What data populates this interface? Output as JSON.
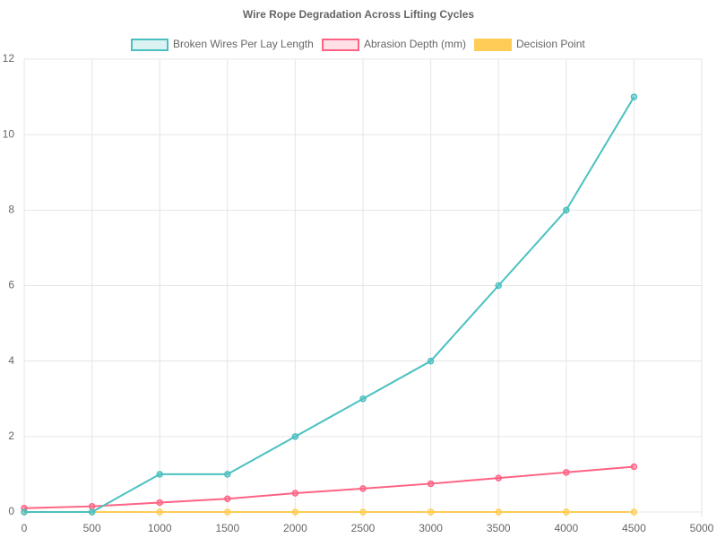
{
  "chart_data": {
    "type": "line",
    "title": "Wire Rope Degradation Across Lifting Cycles",
    "x": [
      0,
      500,
      1000,
      1500,
      2000,
      2500,
      3000,
      3500,
      4000,
      4500
    ],
    "series": [
      {
        "name": "Broken Wires Per Lay Length",
        "color": "#4bc0c0",
        "values": [
          0,
          0,
          1,
          1,
          2,
          3,
          4,
          6,
          8,
          11
        ]
      },
      {
        "name": "Abrasion Depth (mm)",
        "color": "#ff6384",
        "values": [
          0.1,
          0.15,
          0.25,
          0.35,
          0.5,
          0.62,
          0.75,
          0.9,
          1.05,
          1.2
        ]
      },
      {
        "name": "Decision Point",
        "color": "#ffcd56",
        "values": [
          0,
          0,
          0,
          0,
          0,
          0,
          0,
          0,
          0,
          0
        ]
      }
    ],
    "xlim": [
      0,
      5000
    ],
    "xticks": [
      0,
      500,
      1000,
      1500,
      2000,
      2500,
      3000,
      3500,
      4000,
      4500,
      5000
    ],
    "ylim": [
      0,
      12
    ],
    "yticks": [
      0,
      2,
      4,
      6,
      8,
      10,
      12
    ],
    "grid": true,
    "legend": "top"
  }
}
